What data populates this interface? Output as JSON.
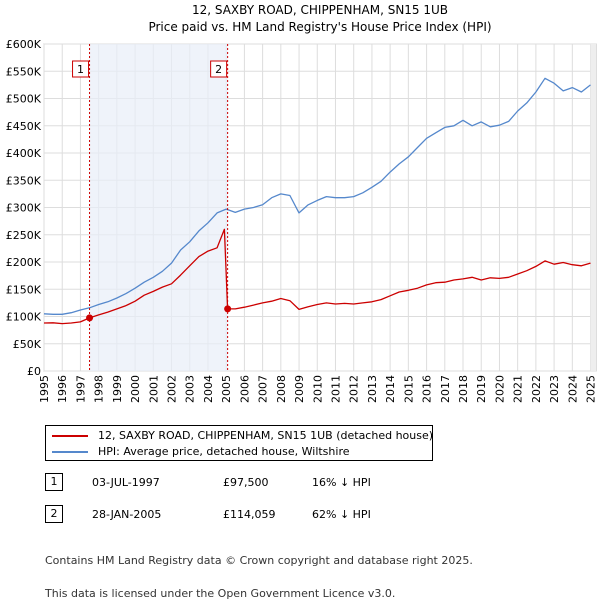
{
  "chart_data": {
    "type": "line",
    "title": "12, SAXBY ROAD, CHIPPENHAM, SN15 1UB",
    "subtitle": "Price paid vs. HM Land Registry's House Price Index (HPI)",
    "xlabel": "",
    "ylabel": "",
    "xlim": [
      1995,
      2025.3
    ],
    "ylim": [
      0,
      600000
    ],
    "grid": true,
    "y_ticks": [
      0,
      50000,
      100000,
      150000,
      200000,
      250000,
      300000,
      350000,
      400000,
      450000,
      500000,
      550000,
      600000
    ],
    "y_tick_labels": [
      "£0",
      "£50K",
      "£100K",
      "£150K",
      "£200K",
      "£250K",
      "£300K",
      "£350K",
      "£400K",
      "£450K",
      "£500K",
      "£550K",
      "£600K"
    ],
    "x_ticks": [
      1995,
      1996,
      1997,
      1998,
      1999,
      2000,
      2001,
      2002,
      2003,
      2004,
      2005,
      2006,
      2007,
      2008,
      2009,
      2010,
      2011,
      2012,
      2013,
      2014,
      2015,
      2016,
      2017,
      2018,
      2019,
      2020,
      2021,
      2022,
      2023,
      2024,
      2025
    ],
    "x_tick_labels": [
      "1995",
      "1996",
      "1997",
      "1998",
      "1999",
      "2000",
      "2001",
      "2002",
      "2003",
      "2004",
      "2005",
      "2006",
      "2007",
      "2008",
      "2009",
      "2010",
      "2011",
      "2012",
      "2013",
      "2014",
      "2015",
      "2016",
      "2017",
      "2018",
      "2019",
      "2020",
      "2021",
      "2022",
      "2023",
      "2024",
      "2025"
    ],
    "series": [
      {
        "name": "12, SAXBY ROAD, CHIPPENHAM, SN15 1UB (detached house)",
        "color": "#cc0000",
        "x": [
          1995.0,
          1995.5,
          1996.0,
          1996.5,
          1997.0,
          1997.5,
          1998.0,
          1998.5,
          1999.0,
          1999.5,
          2000.0,
          2000.5,
          2001.0,
          2001.5,
          2002.0,
          2002.5,
          2003.0,
          2003.5,
          2004.0,
          2004.5,
          2004.9,
          2005.08,
          2005.5,
          2006.0,
          2006.5,
          2007.0,
          2007.5,
          2008.0,
          2008.5,
          2009.0,
          2009.5,
          2010.0,
          2010.5,
          2011.0,
          2011.5,
          2012.0,
          2012.5,
          2013.0,
          2013.5,
          2014.0,
          2014.5,
          2015.0,
          2015.5,
          2016.0,
          2016.5,
          2017.0,
          2017.5,
          2018.0,
          2018.5,
          2019.0,
          2019.5,
          2020.0,
          2020.5,
          2021.0,
          2021.5,
          2022.0,
          2022.5,
          2023.0,
          2023.5,
          2024.0,
          2024.5,
          2025.0
        ],
        "values": [
          88000,
          88500,
          87000,
          88000,
          90000,
          97500,
          103000,
          108000,
          114000,
          120000,
          128000,
          139000,
          146000,
          154000,
          160000,
          176000,
          193000,
          210000,
          220000,
          226000,
          260000,
          114059,
          114000,
          117000,
          121000,
          125000,
          128000,
          133000,
          129000,
          113000,
          118000,
          122000,
          125000,
          123000,
          124000,
          123000,
          125000,
          127000,
          131000,
          138000,
          145000,
          148000,
          152000,
          158000,
          162000,
          163000,
          167000,
          169000,
          172000,
          167000,
          171000,
          170000,
          172000,
          178000,
          184000,
          192000,
          202000,
          196000,
          199000,
          195000,
          193000,
          198000
        ]
      },
      {
        "name": "HPI: Average price, detached house, Wiltshire",
        "color": "#5588cc",
        "x": [
          1995.0,
          1995.5,
          1996.0,
          1996.5,
          1997.0,
          1997.5,
          1998.0,
          1998.5,
          1999.0,
          1999.5,
          2000.0,
          2000.5,
          2001.0,
          2001.5,
          2002.0,
          2002.5,
          2003.0,
          2003.5,
          2004.0,
          2004.5,
          2005.0,
          2005.5,
          2006.0,
          2006.5,
          2007.0,
          2007.5,
          2008.0,
          2008.5,
          2009.0,
          2009.5,
          2010.0,
          2010.5,
          2011.0,
          2011.5,
          2012.0,
          2012.5,
          2013.0,
          2013.5,
          2014.0,
          2014.5,
          2015.0,
          2015.5,
          2016.0,
          2016.5,
          2017.0,
          2017.5,
          2018.0,
          2018.5,
          2019.0,
          2019.5,
          2020.0,
          2020.5,
          2021.0,
          2021.5,
          2022.0,
          2022.5,
          2023.0,
          2023.5,
          2024.0,
          2024.5,
          2025.0
        ],
        "values": [
          105000,
          104000,
          104000,
          107000,
          112000,
          116000,
          122000,
          127000,
          134000,
          142000,
          152000,
          163000,
          172000,
          183000,
          198000,
          222000,
          237000,
          257000,
          272000,
          290000,
          297000,
          291000,
          297000,
          300000,
          305000,
          318000,
          325000,
          322000,
          290000,
          305000,
          313000,
          320000,
          318000,
          318000,
          320000,
          327000,
          337000,
          348000,
          365000,
          380000,
          393000,
          410000,
          427000,
          437000,
          447000,
          450000,
          460000,
          450000,
          457000,
          448000,
          451000,
          458000,
          477000,
          492000,
          512000,
          537000,
          528000,
          514000,
          520000,
          512000,
          525000
        ]
      }
    ],
    "annotations": [
      {
        "label": "1",
        "x": 1997.5,
        "price": 97500
      },
      {
        "label": "2",
        "x": 2005.08,
        "price": 114059
      }
    ]
  },
  "legend": {
    "items": [
      {
        "label": "12, SAXBY ROAD, CHIPPENHAM, SN15 1UB (detached house)",
        "color": "#cc0000"
      },
      {
        "label": "HPI: Average price, detached house, Wiltshire",
        "color": "#5588cc"
      }
    ]
  },
  "transactions": [
    {
      "num": "1",
      "date": "03-JUL-1997",
      "price": "£97,500",
      "hpi": "16% ↓ HPI"
    },
    {
      "num": "2",
      "date": "28-JAN-2005",
      "price": "£114,059",
      "hpi": "62% ↓ HPI"
    }
  ],
  "footer": {
    "line1": "Contains HM Land Registry data © Crown copyright and database right 2025.",
    "line2": "This data is licensed under the Open Government Licence v3.0."
  }
}
